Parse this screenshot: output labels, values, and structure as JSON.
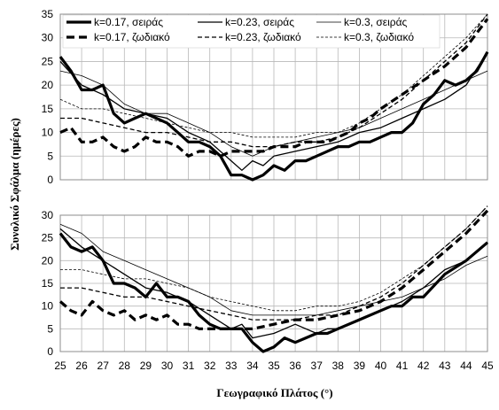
{
  "chart_data": {
    "type": "line",
    "xlabel": "Γεωγραφικό Πλάτος (°)",
    "ylabel": "Συνολικό Σφάλμα (ημέρες)",
    "x_ticks": [
      25,
      26,
      27,
      28,
      29,
      30,
      31,
      32,
      33,
      34,
      35,
      36,
      37,
      38,
      39,
      40,
      41,
      42,
      43,
      44,
      45
    ],
    "legend_position": "top",
    "grid": true,
    "styles": [
      {
        "width": 3.2,
        "dash": ""
      },
      {
        "width": 1.3,
        "dash": ""
      },
      {
        "width": 0.8,
        "dash": ""
      },
      {
        "width": 3.2,
        "dash": "9,5"
      },
      {
        "width": 1.3,
        "dash": "5,3"
      },
      {
        "width": 0.8,
        "dash": "3,2"
      }
    ],
    "panels": [
      {
        "ylim": [
          0,
          35
        ],
        "y_ticks": [
          0,
          5,
          10,
          15,
          20,
          25,
          30,
          35
        ],
        "series": [
          {
            "name": "k=0.17, σειράς",
            "x": [
              25,
              25.5,
              26,
              26.5,
              27,
              27.5,
              28,
              28.5,
              29,
              29.5,
              30,
              30.5,
              31,
              31.5,
              32,
              32.5,
              33,
              33.5,
              34,
              34.5,
              35,
              35.5,
              36,
              36.5,
              37,
              37.5,
              38,
              38.5,
              39,
              39.5,
              40,
              40.5,
              41,
              41.5,
              42,
              42.5,
              43,
              43.5,
              44,
              44.5,
              45
            ],
            "y": [
              26,
              23,
              19,
              19,
              20,
              14,
              12,
              13,
              14,
              13,
              12,
              10,
              8,
              8,
              7,
              5,
              1,
              1,
              0,
              1,
              3,
              2,
              4,
              4,
              5,
              6,
              7,
              7,
              8,
              8,
              9,
              10,
              10,
              12,
              16,
              18,
              21,
              20,
              21,
              23,
              27
            ]
          },
          {
            "name": "k=0.23, σειράς",
            "x": [
              25,
              26,
              27,
              28,
              29,
              30,
              31,
              32,
              33,
              33.5,
              34,
              34.5,
              35,
              36,
              37,
              38,
              39,
              40,
              41,
              42,
              43,
              44,
              45
            ],
            "y": [
              25,
              20,
              18,
              15,
              14,
              13,
              10,
              8,
              4,
              2,
              4,
              3,
              5,
              6,
              7,
              8,
              10,
              11,
              13,
              15,
              17,
              20,
              27
            ]
          },
          {
            "name": "k=0.3, σειράς",
            "x": [
              25,
              26,
              27,
              28,
              29,
              30,
              31,
              32,
              33,
              34,
              35,
              36,
              37,
              38,
              39,
              40,
              41,
              42,
              43,
              44,
              45
            ],
            "y": [
              23,
              22,
              20,
              16,
              14,
              14,
              12,
              10,
              7,
              5,
              7,
              8,
              9,
              10,
              11,
              13,
              15,
              17,
              19,
              21,
              23
            ]
          },
          {
            "name": "k=0.17, ζωδιακό",
            "x": [
              25,
              25.5,
              26,
              26.5,
              27,
              27.5,
              28,
              28.5,
              29,
              29.5,
              30,
              30.5,
              31,
              31.5,
              32,
              32.5,
              33,
              33.5,
              34,
              34.5,
              35,
              35.5,
              36,
              36.5,
              37,
              37.5,
              38,
              38.5,
              39,
              39.5,
              40,
              41,
              42,
              43,
              44,
              45
            ],
            "y": [
              10,
              11,
              8,
              8,
              9,
              7,
              6,
              7,
              9,
              8,
              8,
              7,
              5,
              6,
              6,
              5,
              6,
              6,
              6,
              6,
              7,
              7,
              7,
              8,
              8,
              8,
              9,
              10,
              12,
              13,
              15,
              18,
              21,
              24,
              28,
              34
            ]
          },
          {
            "name": "k=0.23, ζωδιακό",
            "x": [
              25,
              26,
              27,
              28,
              29,
              30,
              31,
              32,
              33,
              34,
              35,
              36,
              37,
              38,
              39,
              40,
              41,
              42,
              43,
              44,
              45
            ],
            "y": [
              13,
              13,
              12,
              11,
              10,
              10,
              9,
              8,
              8,
              7,
              7,
              8,
              8,
              9,
              11,
              14,
              17,
              21,
              25,
              29,
              35
            ]
          },
          {
            "name": "k=0.3, ζωδιακό",
            "x": [
              25,
              26,
              27,
              28,
              29,
              30,
              31,
              32,
              33,
              34,
              35,
              36,
              37,
              38,
              39,
              40,
              41,
              42,
              43,
              44,
              45
            ],
            "y": [
              17,
              15,
              15,
              14,
              13,
              12,
              11,
              10,
              10,
              9,
              9,
              9,
              10,
              10,
              12,
              15,
              18,
              22,
              26,
              30,
              35
            ]
          }
        ]
      },
      {
        "ylim": [
          0,
          30
        ],
        "y_ticks": [
          0,
          5,
          10,
          15,
          20,
          25,
          30
        ],
        "series": [
          {
            "name": "k=0.17, σειράς",
            "x": [
              25,
              25.5,
              26,
              26.5,
              27,
              27.5,
              28,
              28.5,
              29,
              29.5,
              30,
              30.5,
              31,
              31.5,
              32,
              32.5,
              33,
              33.5,
              34,
              34.5,
              35,
              35.5,
              36,
              36.5,
              37,
              37.5,
              38,
              39,
              40,
              40.5,
              41,
              41.5,
              42,
              43,
              44,
              45
            ],
            "y": [
              26,
              23,
              22,
              23,
              20,
              15,
              15,
              14,
              12,
              15,
              12,
              12,
              11,
              8,
              6,
              5,
              5,
              5,
              2,
              0,
              1,
              3,
              2,
              3,
              4,
              4,
              5,
              7,
              9,
              10,
              10,
              12,
              12,
              17,
              20,
              24
            ]
          },
          {
            "name": "k=0.23, σειράς",
            "x": [
              25,
              26,
              27,
              28,
              29,
              30,
              31,
              32,
              33,
              33.5,
              34,
              35,
              36,
              37,
              37.5,
              38,
              39,
              40,
              41,
              42,
              43,
              44,
              45
            ],
            "y": [
              27,
              23,
              20,
              17,
              14,
              13,
              11,
              8,
              5,
              6,
              3,
              4,
              6,
              4,
              5,
              5,
              7,
              9,
              11,
              14,
              18,
              20,
              24
            ]
          },
          {
            "name": "k=0.3, σειράς",
            "x": [
              25,
              26,
              27,
              28,
              29,
              30,
              31,
              32,
              33,
              34,
              35,
              36,
              37,
              38,
              39,
              40,
              41,
              42,
              43,
              44,
              45
            ],
            "y": [
              28,
              26,
              22,
              20,
              18,
              16,
              14,
              12,
              9,
              8,
              8,
              8,
              8,
              9,
              10,
              11,
              12,
              14,
              16,
              19,
              21
            ]
          },
          {
            "name": "k=0.17, ζωδιακό",
            "x": [
              25,
              25.5,
              26,
              26.5,
              27,
              27.5,
              28,
              28.5,
              29,
              29.5,
              30,
              30.5,
              31,
              31.5,
              32,
              33,
              34,
              35,
              36,
              37,
              38,
              39,
              40,
              41,
              42,
              43,
              44,
              45
            ],
            "y": [
              11,
              9,
              8,
              11,
              9,
              8,
              9,
              7,
              8,
              7,
              8,
              6,
              6,
              5,
              5,
              5,
              5,
              6,
              7,
              7,
              8,
              9,
              11,
              14,
              18,
              22,
              26,
              31
            ]
          },
          {
            "name": "k=0.23, ζωδιακό",
            "x": [
              25,
              26,
              27,
              28,
              29,
              30,
              31,
              32,
              33,
              34,
              35,
              36,
              37,
              38,
              39,
              40,
              41,
              42,
              43,
              44,
              45
            ],
            "y": [
              14,
              14,
              13,
              12,
              12,
              11,
              10,
              9,
              8,
              7,
              7,
              7,
              8,
              8,
              10,
              12,
              15,
              19,
              23,
              27,
              32
            ]
          },
          {
            "name": "k=0.3, ζωδιακό",
            "x": [
              25,
              26,
              27,
              28,
              29,
              30,
              31,
              32,
              33,
              34,
              35,
              36,
              37,
              38,
              39,
              40,
              41,
              42,
              43,
              44,
              45
            ],
            "y": [
              18,
              18,
              17,
              16,
              16,
              15,
              14,
              12,
              11,
              10,
              9,
              9,
              10,
              10,
              11,
              13,
              16,
              19,
              23,
              27,
              32
            ]
          }
        ]
      }
    ]
  }
}
